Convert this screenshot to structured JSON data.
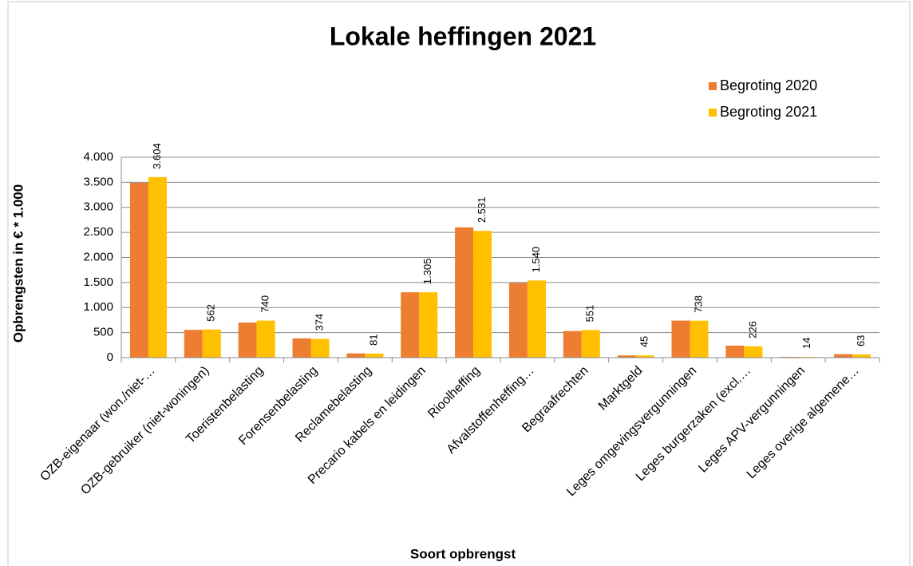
{
  "chart_data": {
    "type": "bar",
    "title": "Lokale heffingen 2021",
    "y_label": "Opbrengsten in € * 1.000",
    "x_label": "Soort opbrengst",
    "categories": [
      "OZB-eigenaar (won./niet-…",
      "OZB-gebruiker (niet-woningen)",
      "Toeristenbelasting",
      "Forensenbelasting",
      "Reclamebelasting",
      "Precario kabels en leidingen",
      "Rioolheffing",
      "Afvalstoffenheffing…",
      "Begraafrechten",
      "Marktgeld",
      "Leges omgevingsvergunningen",
      "Leges burgerzaken (excl.…",
      "Leges APV-vergunningen",
      "Leges overige algemene…"
    ],
    "series": [
      {
        "name": "Begroting 2020",
        "color": "#ed7d31",
        "values": [
          3490,
          555,
          700,
          385,
          85,
          1305,
          2600,
          1490,
          530,
          45,
          740,
          240,
          14,
          70
        ]
      },
      {
        "name": "Begroting 2021",
        "color": "#ffc000",
        "values": [
          3604,
          562,
          740,
          374,
          81,
          1305,
          2531,
          1540,
          551,
          45,
          738,
          226,
          14,
          63
        ],
        "value_labels": [
          "3.604",
          "562",
          "740",
          "374",
          "81",
          "1.305",
          "2.531",
          "1.540",
          "551",
          "45",
          "738",
          "226",
          "14",
          "63"
        ]
      }
    ],
    "ylim": [
      0,
      4000
    ],
    "yticks": [
      0,
      500,
      {
        "value": 1000,
        "label": "1.000"
      },
      {
        "value": 1500,
        "label": "1.500"
      },
      {
        "value": 2000,
        "label": "2.000"
      },
      {
        "value": 2500,
        "label": "2.500"
      },
      {
        "value": 3000,
        "label": "3.000"
      },
      {
        "value": 3500,
        "label": "3.500"
      },
      {
        "value": 4000,
        "label": "4.000"
      }
    ],
    "grid": true,
    "legend": "top-right"
  }
}
